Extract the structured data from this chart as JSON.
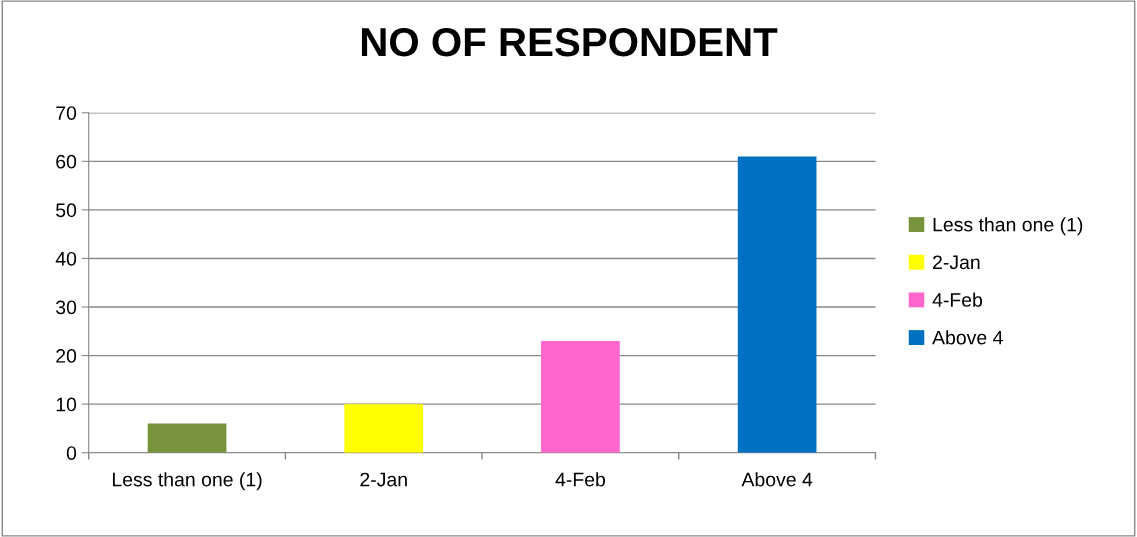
{
  "chart_data": {
    "type": "bar",
    "title": "NO OF RESPONDENT",
    "categories": [
      "Less than one (1)",
      "2-Jan",
      "4-Feb",
      "Above 4"
    ],
    "series": [
      {
        "name": "Less than one (1)",
        "color": "#77933c",
        "values": [
          6,
          null,
          null,
          null
        ]
      },
      {
        "name": "2-Jan",
        "color": "#ffff00",
        "values": [
          null,
          10,
          null,
          null
        ]
      },
      {
        "name": "4-Feb",
        "color": "#ff66cc",
        "values": [
          null,
          null,
          23,
          null
        ]
      },
      {
        "name": "Above 4",
        "color": "#0070c0",
        "values": [
          null,
          null,
          null,
          61
        ]
      }
    ],
    "ylim": [
      0,
      70
    ],
    "yticks": [
      0,
      10,
      20,
      30,
      40,
      50,
      60,
      70
    ],
    "grid": "y",
    "legend": "right"
  }
}
